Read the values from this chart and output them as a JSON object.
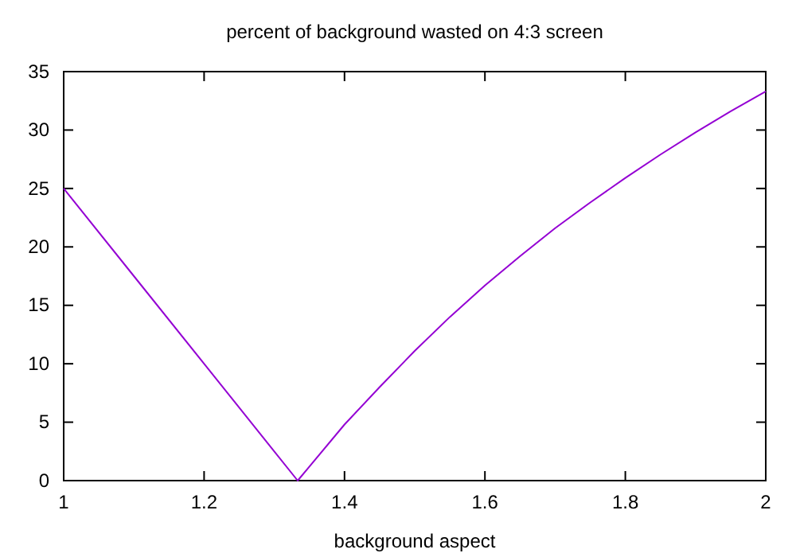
{
  "chart_data": {
    "type": "line",
    "title": "percent of background wasted on 4:3 screen",
    "xlabel": "background aspect",
    "x": [
      1,
      1.1,
      1.2,
      1.3,
      1.3333,
      1.35,
      1.4,
      1.45,
      1.5,
      1.55,
      1.6,
      1.65,
      1.7,
      1.75,
      1.8,
      1.85,
      1.9,
      1.95,
      2
    ],
    "series": [
      {
        "color": "#9400d3",
        "values": [
          25,
          17.5,
          10,
          2.5,
          0,
          1.2,
          4.8,
          8,
          11.1,
          14,
          16.7,
          19.2,
          21.6,
          23.8,
          25.9,
          27.9,
          29.8,
          31.6,
          33.3
        ]
      }
    ],
    "xlim": [
      1,
      2
    ],
    "xticks": [
      1,
      1.2,
      1.4,
      1.6,
      1.8,
      2
    ],
    "ylim": [
      0,
      35
    ],
    "yticks": [
      0,
      5,
      10,
      15,
      20,
      25,
      30,
      35
    ],
    "grid": false,
    "marker": "none",
    "line_style": "solid"
  }
}
